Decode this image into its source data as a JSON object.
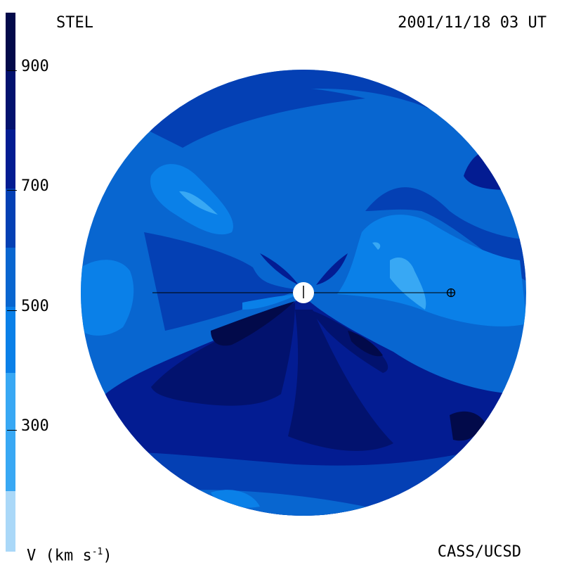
{
  "header": {
    "instrument": "STEL",
    "timestamp": "2001/11/18 03 UT"
  },
  "footer": {
    "units_label": "V (km s",
    "units_exponent": "-1",
    "units_close": ")",
    "credit": "CASS/UCSD"
  },
  "colorbar": {
    "ticks": [
      "900",
      "700",
      "500",
      "300"
    ],
    "colors": [
      "#aad8f8",
      "#38a8f4",
      "#0a80e8",
      "#0866d0",
      "#0440b4",
      "#031c92",
      "#02126e",
      "#020a4a"
    ]
  },
  "map": {
    "sun_marker": "sun-symbol",
    "earth_marker": "earth-symbol"
  }
}
